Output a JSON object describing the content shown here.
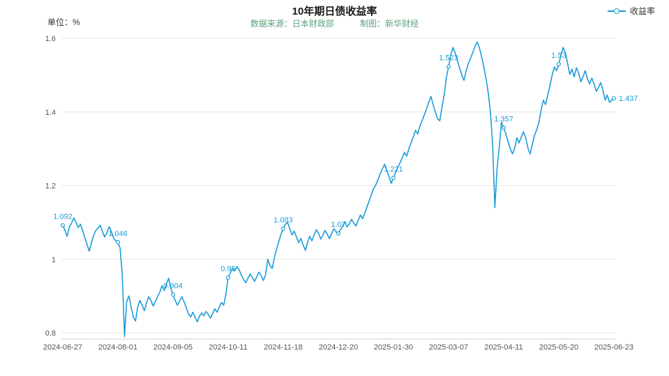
{
  "header": {
    "title": "10年期日债收益率",
    "unit_label": "单位：%",
    "source_label": "数据来源：日本财政部",
    "credit_label": "制图：新华财经",
    "legend": {
      "label": "收益率"
    }
  },
  "theme": {
    "accent": "#1c9cd9",
    "subtitle_color": "#5ba17b",
    "grid_color": "#e6e6e6",
    "axis_line_color": "#cccccc",
    "axis_text_color": "#555555"
  },
  "chart_data": {
    "type": "line",
    "title": "10年期日债收益率",
    "unit": "%",
    "legend_position": "top-right",
    "grid": true,
    "x_range": [
      "2024-06-27",
      "2025-06-23"
    ],
    "x_tick_labels": [
      "2024-06-27",
      "2024-08-01",
      "2024-09-05",
      "2024-10-11",
      "2024-11-18",
      "2024-12-20",
      "2025-01-30",
      "2025-03-07",
      "2025-04-11",
      "2025-05-20",
      "2025-06-23"
    ],
    "y_ticks": [
      {
        "value": 0.8,
        "label": "0.8"
      },
      {
        "value": 1.0,
        "label": "1"
      },
      {
        "value": 1.2,
        "label": "1.2"
      },
      {
        "value": 1.4,
        "label": "1.4"
      },
      {
        "value": 1.6,
        "label": "1.6"
      }
    ],
    "ylim": [
      0.8,
      1.6
    ],
    "series": [
      {
        "name": "收益率",
        "color": "#1c9cd9",
        "values": [
          1.092,
          1.078,
          1.062,
          1.088,
          1.098,
          1.112,
          1.1,
          1.086,
          1.095,
          1.078,
          1.058,
          1.04,
          1.022,
          1.045,
          1.065,
          1.078,
          1.085,
          1.092,
          1.075,
          1.06,
          1.072,
          1.088,
          1.076,
          1.058,
          1.05,
          1.046,
          1.03,
          0.955,
          0.79,
          0.885,
          0.9,
          0.87,
          0.843,
          0.832,
          0.87,
          0.888,
          0.875,
          0.86,
          0.882,
          0.898,
          0.888,
          0.873,
          0.885,
          0.898,
          0.91,
          0.928,
          0.915,
          0.932,
          0.948,
          0.922,
          0.904,
          0.888,
          0.875,
          0.886,
          0.898,
          0.885,
          0.868,
          0.852,
          0.843,
          0.856,
          0.842,
          0.83,
          0.845,
          0.854,
          0.846,
          0.858,
          0.85,
          0.84,
          0.853,
          0.865,
          0.856,
          0.87,
          0.882,
          0.875,
          0.905,
          0.95,
          0.963,
          0.975,
          0.968,
          0.98,
          0.971,
          0.957,
          0.945,
          0.936,
          0.948,
          0.96,
          0.95,
          0.94,
          0.952,
          0.965,
          0.955,
          0.942,
          0.958,
          1.0,
          0.982,
          0.975,
          1.005,
          1.028,
          1.048,
          1.068,
          1.083,
          1.095,
          1.1,
          1.082,
          1.066,
          1.076,
          1.06,
          1.045,
          1.056,
          1.04,
          1.024,
          1.045,
          1.062,
          1.05,
          1.066,
          1.08,
          1.07,
          1.055,
          1.066,
          1.078,
          1.067,
          1.056,
          1.07,
          1.083,
          1.074,
          1.07,
          1.08,
          1.09,
          1.102,
          1.088,
          1.096,
          1.108,
          1.098,
          1.09,
          1.105,
          1.12,
          1.11,
          1.125,
          1.142,
          1.158,
          1.176,
          1.192,
          1.202,
          1.216,
          1.232,
          1.246,
          1.258,
          1.24,
          1.224,
          1.206,
          1.221,
          1.236,
          1.25,
          1.262,
          1.276,
          1.29,
          1.28,
          1.3,
          1.316,
          1.332,
          1.35,
          1.34,
          1.362,
          1.376,
          1.392,
          1.408,
          1.426,
          1.442,
          1.42,
          1.4,
          1.382,
          1.376,
          1.412,
          1.446,
          1.492,
          1.523,
          1.555,
          1.575,
          1.56,
          1.54,
          1.52,
          1.5,
          1.486,
          1.512,
          1.532,
          1.546,
          1.562,
          1.578,
          1.59,
          1.574,
          1.55,
          1.522,
          1.49,
          1.452,
          1.4,
          1.31,
          1.14,
          1.245,
          1.305,
          1.372,
          1.357,
          1.34,
          1.32,
          1.3,
          1.286,
          1.302,
          1.33,
          1.316,
          1.332,
          1.346,
          1.33,
          1.302,
          1.286,
          1.312,
          1.336,
          1.352,
          1.372,
          1.406,
          1.432,
          1.42,
          1.446,
          1.472,
          1.5,
          1.522,
          1.512,
          1.53,
          1.556,
          1.575,
          1.56,
          1.532,
          1.502,
          1.516,
          1.495,
          1.52,
          1.506,
          1.482,
          1.496,
          1.512,
          1.49,
          1.476,
          1.492,
          1.476,
          1.456,
          1.466,
          1.48,
          1.46,
          1.432,
          1.446,
          1.426,
          1.432,
          1.437
        ]
      }
    ],
    "annotations": [
      {
        "index": 0,
        "label": "1.092"
      },
      {
        "index": 25,
        "label": "1.046"
      },
      {
        "index": 50,
        "label": "0.904"
      },
      {
        "index": 75,
        "label": "0.95"
      },
      {
        "index": 100,
        "label": "1.083"
      },
      {
        "index": 125,
        "label": "1.07"
      },
      {
        "index": 150,
        "label": "1.221"
      },
      {
        "index": 175,
        "label": "1.523"
      },
      {
        "index": 200,
        "label": "1.357"
      },
      {
        "index": 225,
        "label": "1.53"
      },
      {
        "index": 250,
        "label": "1.437",
        "side": "right"
      }
    ]
  }
}
